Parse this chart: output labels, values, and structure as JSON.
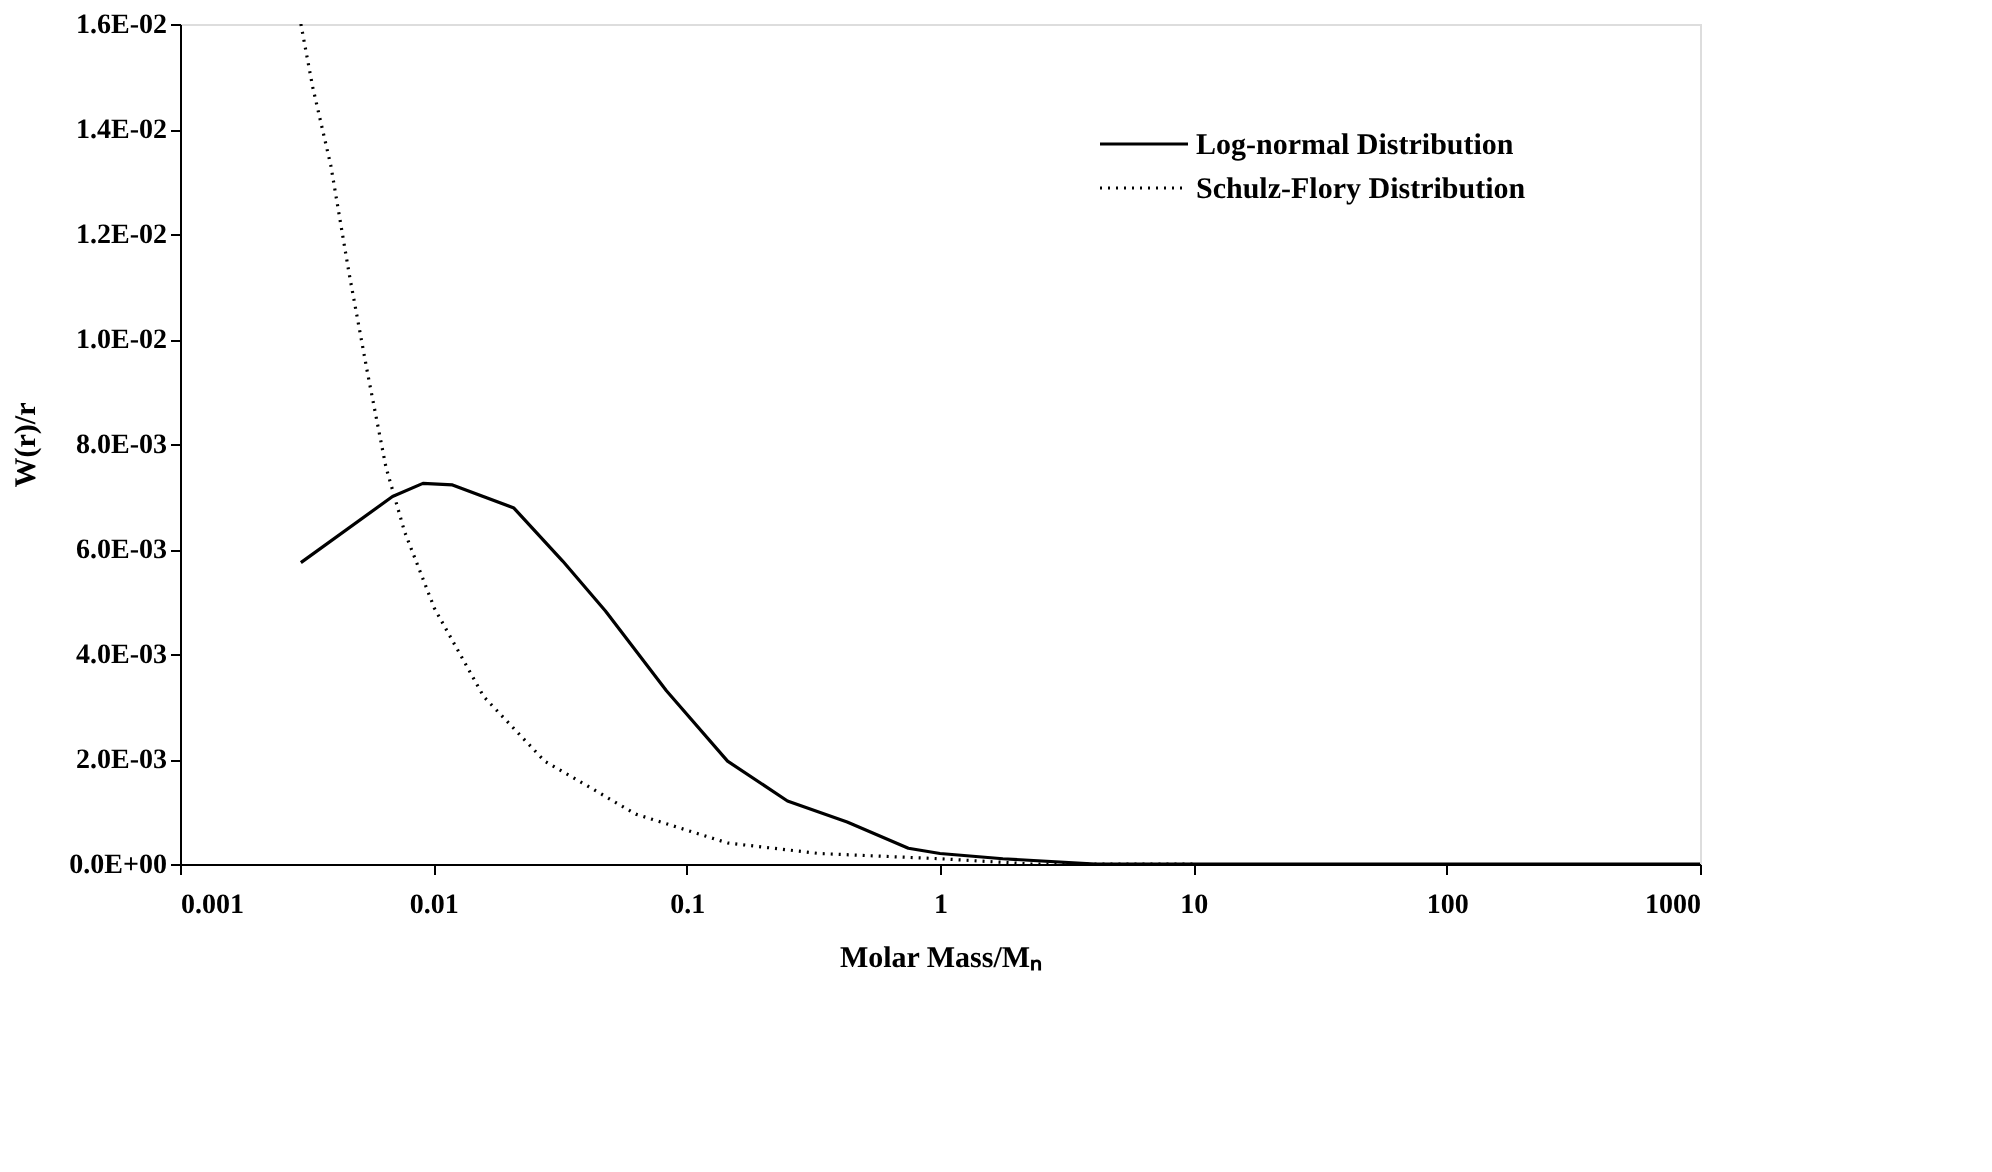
{
  "chart_data": {
    "type": "line",
    "xlabel": "Molar Mass/Mₙ",
    "ylabel": "W(r)/r",
    "log": "x",
    "grid": false,
    "legend": "top right",
    "marker": "none",
    "xlim": [
      0.001,
      1000
    ],
    "xticks": [
      0.001,
      0.01,
      0.1,
      1,
      10,
      100,
      1000
    ],
    "ylim": [
      0,
      0.016
    ],
    "yticks": [
      {
        "value": 0,
        "label": "0.0E+00"
      },
      {
        "value": 0.002,
        "label": "2.0E-03"
      },
      {
        "value": 0.004,
        "label": "4.0E-03"
      },
      {
        "value": 0.006,
        "label": "6.0E-03"
      },
      {
        "value": 0.008,
        "label": "8.0E-03"
      },
      {
        "value": 0.01,
        "label": "1.0E-02"
      },
      {
        "value": 0.012,
        "label": "1.2E-02"
      },
      {
        "value": 0.014,
        "label": "1.4E-02"
      },
      {
        "value": 0.016,
        "label": "1.6E-02"
      }
    ],
    "series": [
      {
        "name": "Log-normal Distribution",
        "color": "#000000",
        "line_style": "solid",
        "x": [
          0.003,
          0.0069,
          0.0091,
          0.0119,
          0.0208,
          0.0324,
          0.0478,
          0.0832,
          0.145,
          0.25,
          0.43,
          0.75,
          1,
          1.77,
          4.1,
          10,
          100,
          1000
        ],
        "values": [
          0.00574,
          0.007,
          0.00725,
          0.00722,
          0.00678,
          0.00577,
          0.00482,
          0.0033,
          0.00196,
          0.0012,
          0.0008,
          0.0003,
          0.0002,
          0.0001,
          0,
          0,
          0,
          0
        ]
      },
      {
        "name": "Schulz-Flory Distribution",
        "color": "#000000",
        "line_style": "dotted",
        "x": [
          0.003,
          0.00334,
          0.00394,
          0.00465,
          0.0055,
          0.0065,
          0.0077,
          0.0101,
          0.0158,
          0.0275,
          0.063,
          0.145,
          0.333,
          1,
          2.3,
          10
        ],
        "values": [
          0.016,
          0.0148,
          0.0133,
          0.01125,
          0.00935,
          0.00756,
          0.00633,
          0.00487,
          0.00319,
          0.00196,
          0.00095,
          0.0004,
          0.0002,
          0.0001,
          0,
          0
        ]
      }
    ]
  }
}
